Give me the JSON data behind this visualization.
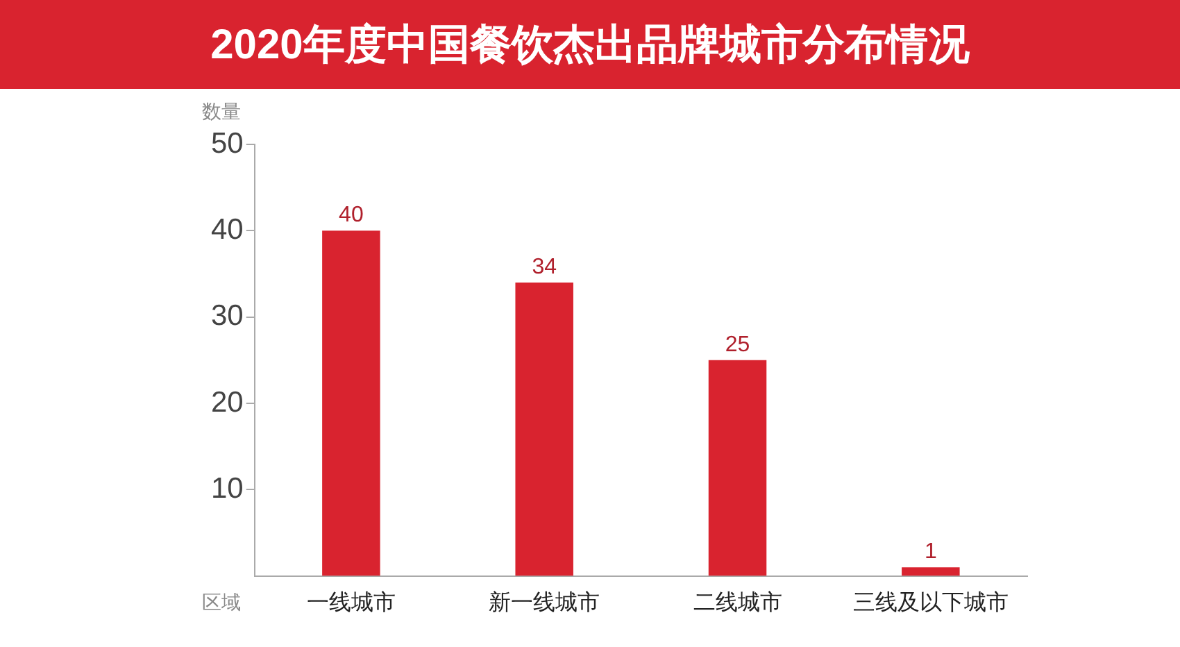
{
  "chart_data": {
    "type": "bar",
    "title": "2020年度中国餐饮杰出品牌城市分布情况",
    "xlabel": "区域",
    "ylabel": "数量",
    "categories": [
      "一线城市",
      "新一线城市",
      "二线城市",
      "三线及以下城市"
    ],
    "values": [
      40,
      34,
      25,
      1
    ],
    "color": "#d9232f",
    "ylim": [
      0,
      50
    ],
    "yticks": [
      10,
      20,
      30,
      40,
      50
    ],
    "grid": false,
    "data_labels": true
  }
}
